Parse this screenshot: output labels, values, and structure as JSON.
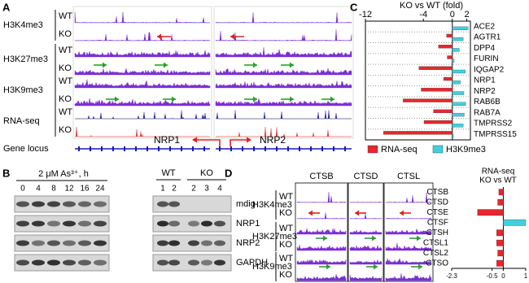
{
  "panels": {
    "A": {
      "letter": "A",
      "tracks": [
        {
          "mark": "H3K4me3",
          "samples": [
            "WT",
            "KO"
          ]
        },
        {
          "mark": "H3K27me3",
          "samples": [
            "WT",
            "KO"
          ]
        },
        {
          "mark": "H3K9me3",
          "samples": [
            "WT",
            "KO"
          ]
        },
        {
          "mark": "RNA-seq",
          "samples": [
            "WT",
            "KO"
          ]
        }
      ],
      "gene_locus_label": "Gene locus",
      "genes": [
        "NRP1",
        "NRP2"
      ]
    },
    "B": {
      "letter": "B",
      "treatment": "2 μM As³⁺, h",
      "timepoints": [
        0,
        4,
        8,
        12,
        16,
        24
      ],
      "groups": [
        {
          "name": "WT",
          "lanes": [
            1,
            2
          ]
        },
        {
          "name": "KO",
          "lanes": [
            2,
            3,
            4
          ]
        }
      ],
      "proteins": [
        "mdig",
        "NRP1",
        "NRP2",
        "GAPDH"
      ]
    },
    "C": {
      "letter": "C"
    },
    "D": {
      "letter": "D",
      "genes": [
        "CTSB",
        "CTSD",
        "CTSL"
      ],
      "tracks": [
        {
          "mark": "H3K4me3",
          "samples": [
            "WT",
            "KO"
          ]
        },
        {
          "mark": "H3K27me3",
          "samples": [
            "WT",
            "KO"
          ]
        },
        {
          "mark": "H3K9me3",
          "samples": [
            "WT",
            "KO"
          ]
        }
      ]
    }
  },
  "chart_data": [
    {
      "type": "bar",
      "orientation": "horizontal",
      "title": "KO vs WT (fold)",
      "categories": [
        "ACE2",
        "AGTR1",
        "DPP4",
        "FURIN",
        "IQGAP2",
        "NRP1",
        "NRP2",
        "RAB6B",
        "RAB7A",
        "TMPRSS2",
        "TMPRSS15"
      ],
      "series": [
        {
          "name": "RNA-seq",
          "color": "#e8262b",
          "values": [
            0,
            -0.8,
            -1.9,
            -0.7,
            -4.6,
            -1.2,
            -4.3,
            -6.8,
            -2.6,
            -3.9,
            -9.5
          ]
        },
        {
          "name": "H3K9me3",
          "color": "#3fd0e0",
          "values": [
            2.2,
            1.5,
            0.95,
            0.25,
            1.8,
            1.1,
            1.6,
            1.85,
            1.65,
            1.5,
            0.15
          ]
        }
      ],
      "xlim": [
        -12,
        2.5
      ],
      "xticks": [
        -12,
        -4,
        0,
        2
      ],
      "grid": true,
      "legend": "bottom"
    },
    {
      "type": "bar",
      "orientation": "horizontal",
      "title": [
        "RNA-seq",
        "KO vs WT"
      ],
      "categories": [
        "CTSB",
        "CTSD",
        "CTSE",
        "CTSF",
        "CTSH",
        "CTSL1",
        "CTSL2",
        "CTSO"
      ],
      "values": [
        -0.2,
        -0.25,
        -1.15,
        1,
        -0.3,
        -0.3,
        -0.25,
        -0.3
      ],
      "colors": [
        "#e8262b",
        "#e8262b",
        "#e8262b",
        "#3fd0e0",
        "#e8262b",
        "#e8262b",
        "#e8262b",
        "#e8262b"
      ],
      "xlim": [
        -2.3,
        1
      ],
      "xticks": [
        -2.3,
        -0.5,
        0,
        1
      ],
      "grid": false
    }
  ]
}
